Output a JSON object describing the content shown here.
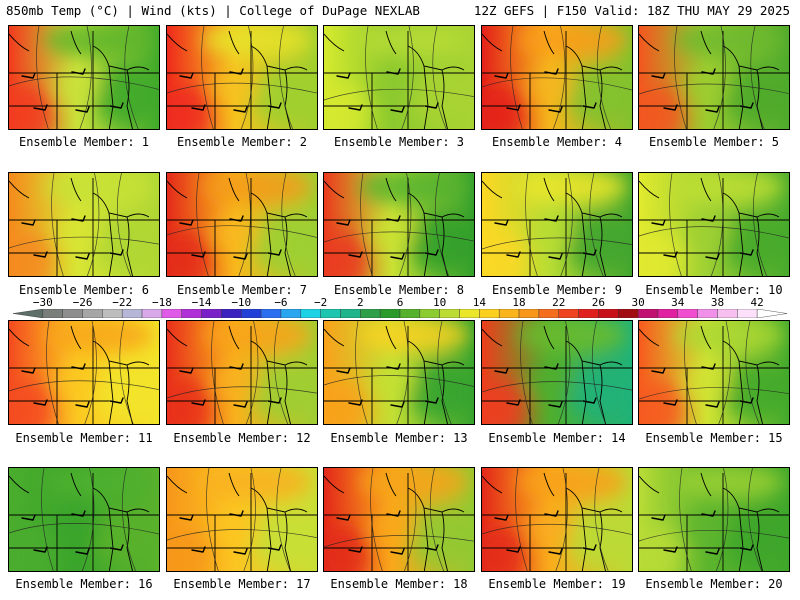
{
  "header": {
    "left": "850mb Temp (°C) | Wind (kts) | College of DuPage NEXLAB",
    "right": "12Z GEFS | F150 Valid: 18Z THU MAY 29 2025"
  },
  "member_label_prefix": "Ensemble Member: ",
  "members": [
    {
      "id": "1",
      "west": "#f23a1e",
      "mid": "#c9e23a",
      "east": "#3da82a",
      "north": "#5fb52c"
    },
    {
      "id": "2",
      "west": "#ef2a1c",
      "mid": "#f6c21e",
      "east": "#9cd02e",
      "north": "#e6e42a"
    },
    {
      "id": "3",
      "west": "#d6ea2e",
      "mid": "#8cc92e",
      "east": "#a9d432",
      "north": "#b8dc35"
    },
    {
      "id": "4",
      "west": "#e4201a",
      "mid": "#f5b61c",
      "east": "#7fc22d",
      "north": "#fa9c18"
    },
    {
      "id": "5",
      "west": "#f3561f",
      "mid": "#9ccd2f",
      "east": "#4ca92c",
      "north": "#6fb92d"
    },
    {
      "id": "6",
      "west": "#f58a1c",
      "mid": "#d8e534",
      "east": "#aed634",
      "north": "#c7e236"
    },
    {
      "id": "7",
      "west": "#e42a1a",
      "mid": "#f8b81c",
      "east": "#9ad033",
      "north": "#f59a1a"
    },
    {
      "id": "8",
      "west": "#ea3a1d",
      "mid": "#c9e134",
      "east": "#2f9e2b",
      "north": "#55b32e"
    },
    {
      "id": "9",
      "west": "#fcd823",
      "mid": "#b7dc34",
      "east": "#3fa42d",
      "north": "#eee62b"
    },
    {
      "id": "10",
      "west": "#e2ea2e",
      "mid": "#9dd034",
      "east": "#45a92c",
      "north": "#c1df33"
    },
    {
      "id": "11",
      "west": "#f44a1f",
      "mid": "#fbc822",
      "east": "#f2e52a",
      "north": "#f8a61a"
    },
    {
      "id": "12",
      "west": "#e9301b",
      "mid": "#f8b11c",
      "east": "#9ccf33",
      "north": "#f9a21a"
    },
    {
      "id": "13",
      "west": "#f9a11b",
      "mid": "#c3df34",
      "east": "#34a22d",
      "north": "#fbd122"
    },
    {
      "id": "14",
      "west": "#ee3d1c",
      "mid": "#4fae2d",
      "east": "#1eb27a",
      "north": "#6cbc2e"
    },
    {
      "id": "15",
      "west": "#f75a1e",
      "mid": "#d0e333",
      "east": "#3fa82c",
      "north": "#acd733"
    },
    {
      "id": "16",
      "west": "#4bad2d",
      "mid": "#3aa52c",
      "east": "#5bb22c",
      "north": "#4fb02d"
    },
    {
      "id": "17",
      "west": "#f7961a",
      "mid": "#fbc522",
      "east": "#c6e036",
      "north": "#f9b01c"
    },
    {
      "id": "18",
      "west": "#e3281a",
      "mid": "#f9a81b",
      "east": "#8fca31",
      "north": "#f7a51b"
    },
    {
      "id": "19",
      "west": "#e4281a",
      "mid": "#f9ad1c",
      "east": "#b8dc36",
      "north": "#f9a01a"
    },
    {
      "id": "20",
      "west": "#b9dc36",
      "mid": "#5db52d",
      "east": "#3da62b",
      "north": "#9bd033"
    }
  ],
  "colorbar": {
    "min": -32,
    "max": 44,
    "tick_labels": [
      "−30",
      "−26",
      "−22",
      "−18",
      "−14",
      "−10",
      "−6",
      "−2",
      "2",
      "6",
      "10",
      "14",
      "18",
      "22",
      "26",
      "30",
      "34",
      "38",
      "42"
    ],
    "tick_values": [
      -30,
      -26,
      -22,
      -18,
      -14,
      -10,
      -6,
      -2,
      2,
      6,
      10,
      14,
      18,
      22,
      26,
      30,
      34,
      38,
      42
    ],
    "colors": [
      "#5e6e68",
      "#7a7f7c",
      "#8e8e8e",
      "#a6a6a6",
      "#bdbdbd",
      "#b6b6d6",
      "#d8a8e8",
      "#e05ae8",
      "#b030d8",
      "#7a20c8",
      "#3b20c0",
      "#2040d8",
      "#2c6ef0",
      "#2aa6f0",
      "#1ed2e6",
      "#1ec6b0",
      "#20b48a",
      "#2ea04a",
      "#2a9a2a",
      "#56b22c",
      "#8ccc30",
      "#bcdc34",
      "#eae62a",
      "#fcd020",
      "#fbb41c",
      "#f8961a",
      "#f46e1e",
      "#ee4420",
      "#e0201c",
      "#c81018",
      "#a00c12",
      "#c01070",
      "#e020a0",
      "#f050d0",
      "#f090e8",
      "#f8c0f0",
      "#fde0fa",
      "#ffffff"
    ]
  }
}
